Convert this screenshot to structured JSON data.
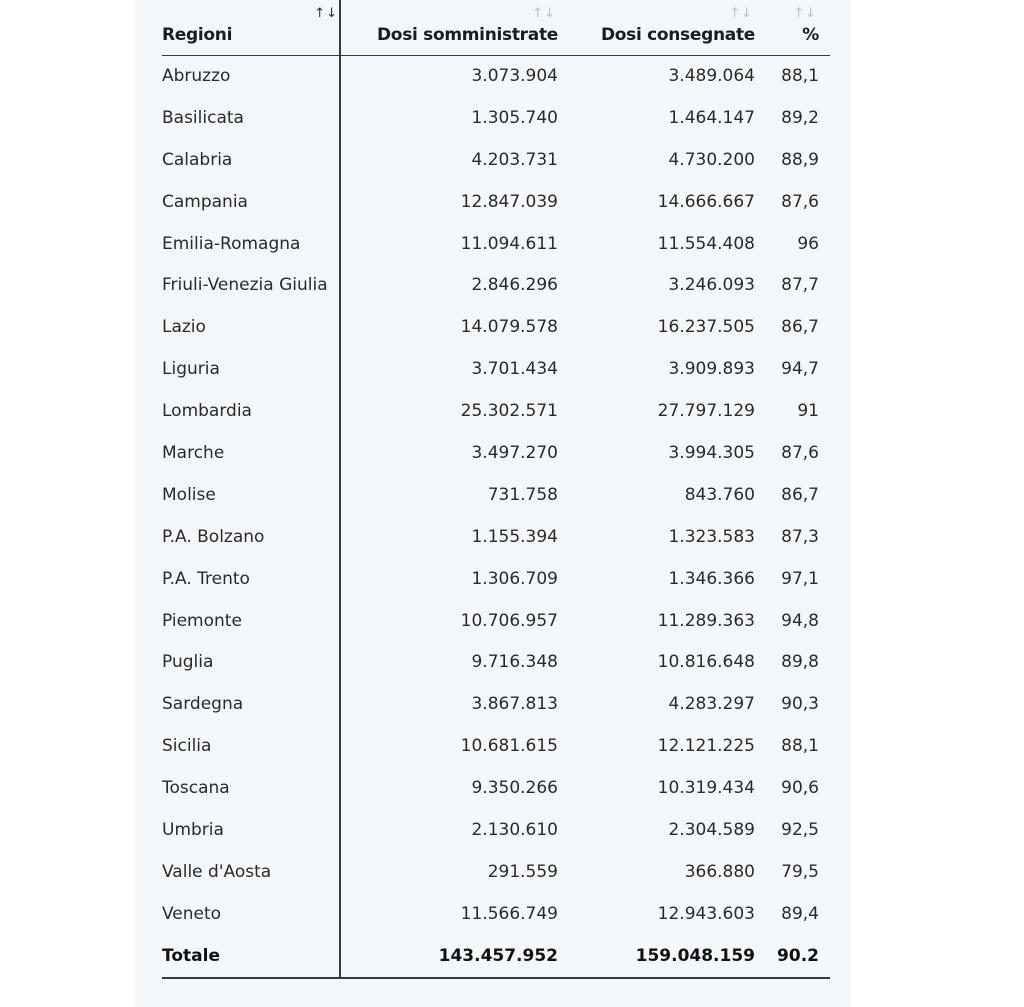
{
  "table": {
    "headers": [
      {
        "label": "Regioni",
        "sort": "↑↓",
        "active": true
      },
      {
        "label": "Dosi somministrate",
        "sort": "↑↓",
        "active": false
      },
      {
        "label": "Dosi consegnate",
        "sort": "↑↓",
        "active": false
      },
      {
        "label": "%",
        "sort": "↑↓",
        "active": false
      }
    ],
    "rows": [
      [
        "Abruzzo",
        "3.073.904",
        "3.489.064",
        "88,1"
      ],
      [
        "Basilicata",
        "1.305.740",
        "1.464.147",
        "89,2"
      ],
      [
        "Calabria",
        "4.203.731",
        "4.730.200",
        "88,9"
      ],
      [
        "Campania",
        "12.847.039",
        "14.666.667",
        "87,6"
      ],
      [
        "Emilia-Romagna",
        "11.094.611",
        "11.554.408",
        "96"
      ],
      [
        "Friuli-Venezia Giulia",
        "2.846.296",
        "3.246.093",
        "87,7"
      ],
      [
        "Lazio",
        "14.079.578",
        "16.237.505",
        "86,7"
      ],
      [
        "Liguria",
        "3.701.434",
        "3.909.893",
        "94,7"
      ],
      [
        "Lombardia",
        "25.302.571",
        "27.797.129",
        "91"
      ],
      [
        "Marche",
        "3.497.270",
        "3.994.305",
        "87,6"
      ],
      [
        "Molise",
        "731.758",
        "843.760",
        "86,7"
      ],
      [
        "P.A. Bolzano",
        "1.155.394",
        "1.323.583",
        "87,3"
      ],
      [
        "P.A. Trento",
        "1.306.709",
        "1.346.366",
        "97,1"
      ],
      [
        "Piemonte",
        "10.706.957",
        "11.289.363",
        "94,8"
      ],
      [
        "Puglia",
        "9.716.348",
        "10.816.648",
        "89,8"
      ],
      [
        "Sardegna",
        "3.867.813",
        "4.283.297",
        "90,3"
      ],
      [
        "Sicilia",
        "10.681.615",
        "12.121.225",
        "88,1"
      ],
      [
        "Toscana",
        "9.350.266",
        "10.319.434",
        "90,6"
      ],
      [
        "Umbria",
        "2.130.610",
        "2.304.589",
        "92,5"
      ],
      [
        "Valle d'Aosta",
        "291.559",
        "366.880",
        "79,5"
      ],
      [
        "Veneto",
        "11.566.749",
        "12.943.603",
        "89,4"
      ]
    ],
    "total": [
      "Totale",
      "143.457.952",
      "159.048.159",
      "90.2"
    ]
  }
}
